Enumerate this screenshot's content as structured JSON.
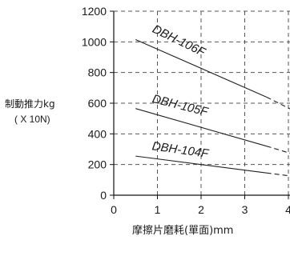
{
  "chart_data": {
    "type": "line",
    "xlabel": "摩擦片磨耗(單面)mm",
    "ylabel": "制動推力kg",
    "ylabel_unit": "( X 10N)",
    "xlim": [
      0,
      4
    ],
    "ylim": [
      0,
      1200
    ],
    "x_ticks": [
      "0",
      "1",
      "2",
      "3",
      "4"
    ],
    "y_ticks": [
      "0",
      "200",
      "400",
      "600",
      "800",
      "1000",
      "1200"
    ],
    "grid": true,
    "series": [
      {
        "name": "DBH-106F",
        "x": [
          0.5,
          3.5,
          4.2
        ],
        "y": [
          1015,
          640,
          540
        ]
      },
      {
        "name": "DBH-105F",
        "x": [
          0.5,
          3.5,
          4.2
        ],
        "y": [
          565,
          320,
          260
        ]
      },
      {
        "name": "DBH-104F",
        "x": [
          0.5,
          3.5,
          4.2
        ],
        "y": [
          255,
          145,
          120
        ]
      }
    ]
  }
}
